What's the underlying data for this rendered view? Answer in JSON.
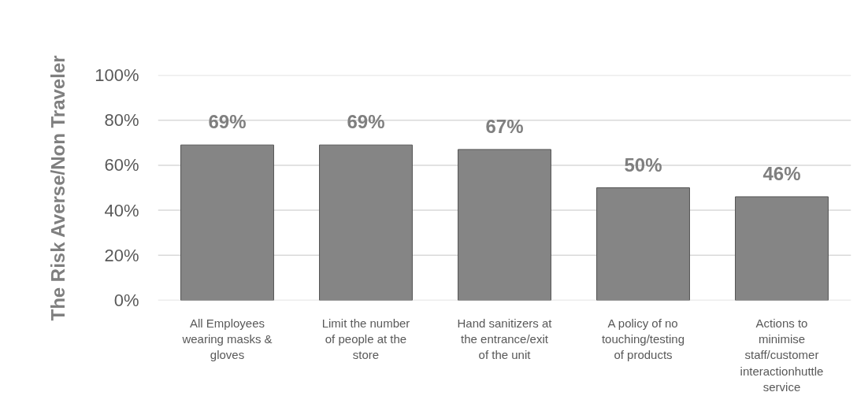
{
  "chart_data": {
    "type": "bar",
    "ylabel": "The Risk Averse/Non Traveler",
    "categories": [
      "All Employees wearing masks & gloves",
      "Limit the number of people at the store",
      "Hand sanitizers at the entrance/exit of the unit",
      "A policy of no touching/testing of products",
      "Actions to minimise staff/customer interactionhuttle service"
    ],
    "values": [
      69,
      69,
      67,
      50,
      46
    ],
    "value_labels": [
      "69%",
      "69%",
      "67%",
      "50%",
      "46%"
    ],
    "color": "#858585",
    "ylim": [
      0,
      100
    ],
    "yticks": [
      {
        "value": 0,
        "label": "0%"
      },
      {
        "value": 20,
        "label": "20%"
      },
      {
        "value": 40,
        "label": "40%"
      },
      {
        "value": 60,
        "label": "60%"
      },
      {
        "value": 80,
        "label": "80%"
      },
      {
        "value": 100,
        "label": "100%"
      }
    ],
    "grid": "y"
  }
}
